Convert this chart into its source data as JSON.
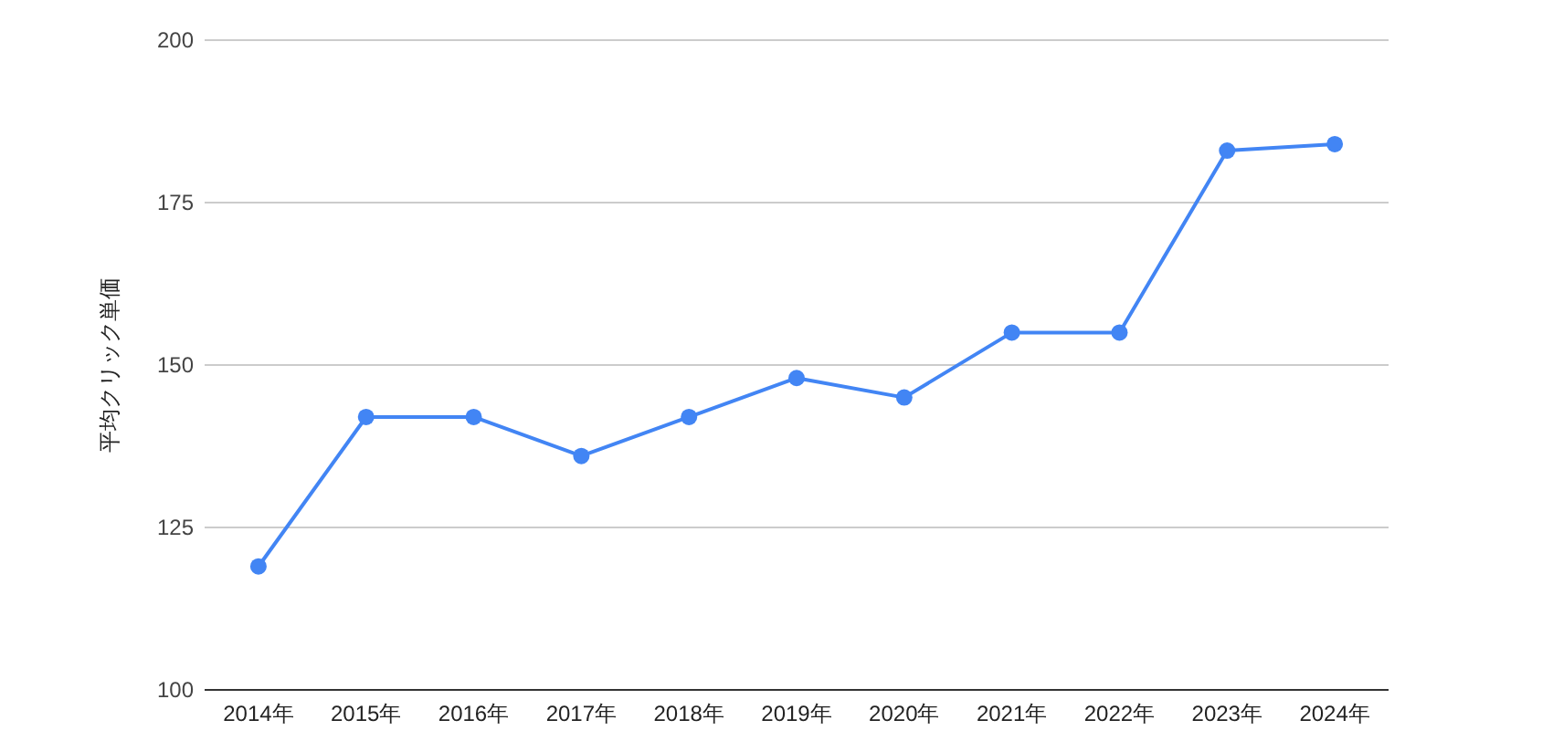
{
  "chart_data": {
    "type": "line",
    "ylabel": "平均クリック単価",
    "categories": [
      "2014年",
      "2015年",
      "2016年",
      "2017年",
      "2018年",
      "2019年",
      "2020年",
      "2021年",
      "2022年",
      "2023年",
      "2024年"
    ],
    "series": [
      {
        "color": "#4285f4",
        "values": [
          119,
          142,
          142,
          136,
          142,
          148,
          145,
          155,
          155,
          183,
          184
        ]
      }
    ],
    "ylim": [
      100,
      200
    ],
    "yticks": [
      100,
      125,
      150,
      175,
      200
    ],
    "grid": "y",
    "marker": "circle"
  }
}
